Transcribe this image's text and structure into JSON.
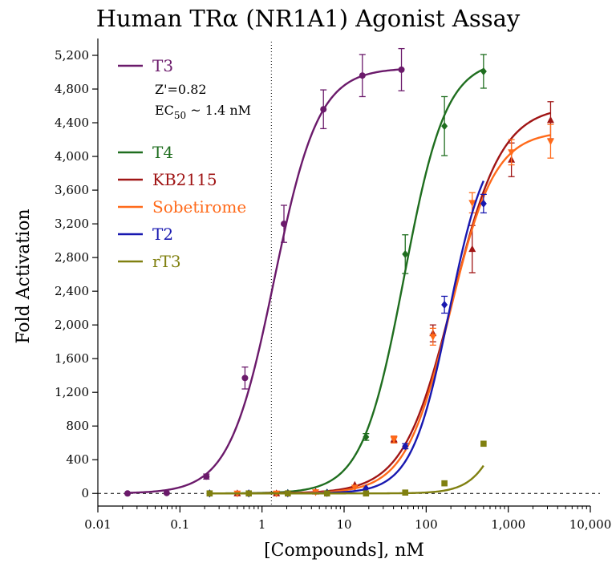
{
  "chart_data": {
    "type": "scatter",
    "title": "Human TRα (NR1A1) Agonist Assay",
    "xlabel": "[Compounds], nM",
    "ylabel": "Fold Activation",
    "x_scale": "log",
    "xlim": [
      0.01,
      10000
    ],
    "ylim": [
      -150,
      5400
    ],
    "x_ticks": [
      0.01,
      0.1,
      1,
      10,
      100,
      1000,
      10000
    ],
    "x_tick_labels": [
      "0.01",
      "0.1",
      "1",
      "10",
      "100",
      "1,000",
      "10,000"
    ],
    "y_ticks": [
      0,
      400,
      800,
      1200,
      1600,
      2000,
      2400,
      2800,
      3200,
      3600,
      4000,
      4400,
      4800,
      5200
    ],
    "y_tick_labels": [
      "0",
      "400",
      "800",
      "1,200",
      "1,600",
      "2,000",
      "2,400",
      "2,800",
      "3,200",
      "3,600",
      "4,000",
      "4,400",
      "4,800",
      "5,200"
    ],
    "reference_line": {
      "x": 1.3,
      "style": "dotted"
    },
    "baseline": {
      "y": 0,
      "style": "dashed"
    },
    "legend_position": "top-left",
    "annotation": {
      "line1": "Z'=0.82",
      "line2_prefix": "EC",
      "line2_sub": "50",
      "line2_suffix": " ~ 1.4 nM"
    },
    "series": [
      {
        "name": "T3",
        "color": "#6b1a6b",
        "marker": "circle",
        "x": [
          0.023,
          0.069,
          0.21,
          0.62,
          1.85,
          5.6,
          16.7,
          50
        ],
        "y": [
          0,
          5,
          200,
          1370,
          3200,
          4560,
          4960,
          5030
        ],
        "err": [
          0,
          0,
          30,
          130,
          220,
          230,
          250,
          250
        ],
        "fit": {
          "bottom": 0,
          "top": 5050,
          "ec50": 1.4,
          "hill": 1.6,
          "xmin": 0.023,
          "xmax": 50
        }
      },
      {
        "name": "T4",
        "color": "#1f6e1f",
        "marker": "diamond",
        "x": [
          0.23,
          0.69,
          2.06,
          6.2,
          18.5,
          55.6,
          167,
          500
        ],
        "y": [
          0,
          0,
          5,
          10,
          670,
          2840,
          4360,
          5010
        ],
        "err": [
          0,
          0,
          0,
          0,
          40,
          230,
          350,
          200
        ],
        "fit": {
          "bottom": 0,
          "top": 5150,
          "ec50": 54,
          "hill": 1.7,
          "xmin": 0.23,
          "xmax": 500
        }
      },
      {
        "name": "KB2115",
        "color": "#a01515",
        "marker": "triangle-up",
        "x": [
          0.5,
          1.5,
          4.5,
          13.5,
          40.5,
          121,
          364,
          1093,
          3280
        ],
        "y": [
          0,
          0,
          20,
          100,
          640,
          1900,
          2900,
          3960,
          4430
        ],
        "err": [
          0,
          0,
          0,
          0,
          40,
          100,
          280,
          200,
          220
        ],
        "fit": {
          "bottom": 0,
          "top": 4600,
          "ec50": 210,
          "hill": 1.45,
          "xmin": 0.23,
          "xmax": 3280
        }
      },
      {
        "name": "Sobetirome",
        "color": "#ff6a1a",
        "marker": "triangle-down",
        "x": [
          0.5,
          1.5,
          4.5,
          13.5,
          40.5,
          121,
          364,
          1093,
          3280
        ],
        "y": [
          0,
          0,
          15,
          70,
          640,
          1860,
          3450,
          4050,
          4180
        ],
        "err": [
          0,
          0,
          0,
          0,
          40,
          100,
          120,
          150,
          200
        ],
        "fit": {
          "bottom": 0,
          "top": 4300,
          "ec50": 195,
          "hill": 1.6,
          "xmin": 0.23,
          "xmax": 3280
        }
      },
      {
        "name": "T2",
        "color": "#1818b0",
        "marker": "diamond",
        "x": [
          0.23,
          0.69,
          2.06,
          6.2,
          18.5,
          55.6,
          167,
          500
        ],
        "y": [
          0,
          0,
          0,
          5,
          60,
          560,
          2240,
          3440
        ],
        "err": [
          0,
          0,
          0,
          0,
          0,
          30,
          100,
          110
        ],
        "fit": {
          "bottom": 0,
          "top": 4300,
          "ec50": 190,
          "hill": 1.9,
          "xmin": 0.23,
          "xmax": 500
        }
      },
      {
        "name": "rT3",
        "color": "#808010",
        "marker": "square",
        "x": [
          0.23,
          0.69,
          2.06,
          6.2,
          18.5,
          55.6,
          167,
          500
        ],
        "y": [
          0,
          0,
          0,
          0,
          0,
          10,
          120,
          590
        ],
        "err": [
          0,
          0,
          0,
          0,
          0,
          0,
          0,
          0
        ],
        "fit": {
          "bottom": 0,
          "top": 2200,
          "ec50": 1100,
          "hill": 2.2,
          "xmin": 0.23,
          "xmax": 500
        }
      }
    ]
  }
}
